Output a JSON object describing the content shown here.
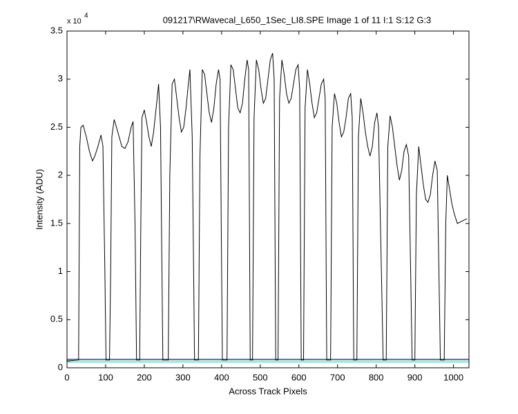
{
  "chart_data": {
    "type": "line",
    "title": "091217\\RWavecal_L650_1Sec_LI8.SPE  Image 1 of 11  I:1  S:12  G:3",
    "xlabel": "Across Track Pixels",
    "ylabel": "Intensity (ADU)",
    "y_exponent_base": "x 10",
    "y_exponent": "4",
    "xlim": [
      0,
      1040
    ],
    "ylim": [
      0,
      3.5
    ],
    "xticks": [
      0,
      100,
      200,
      300,
      400,
      500,
      600,
      700,
      800,
      900,
      1000
    ],
    "yticks": [
      0,
      0.5,
      1,
      1.5,
      2,
      2.5,
      3,
      3.5
    ],
    "grid": false,
    "series": [
      {
        "color": "#000000",
        "x": [
          0,
          30,
          33,
          36,
          42,
          50,
          58,
          66,
          72,
          80,
          88,
          93,
          98,
          101,
          110,
          113,
          116,
          122,
          128,
          135,
          142,
          150,
          158,
          166,
          171,
          176,
          180,
          188,
          191,
          194,
          200,
          206,
          212,
          218,
          224,
          232,
          237,
          242,
          248,
          262,
          266,
          272,
          278,
          284,
          290,
          296,
          302,
          308,
          314,
          318,
          324,
          330,
          340,
          344,
          350,
          356,
          362,
          368,
          374,
          380,
          386,
          392,
          396,
          402,
          414,
          418,
          424,
          430,
          436,
          442,
          448,
          454,
          460,
          466,
          470,
          474,
          480,
          484,
          490,
          496,
          502,
          508,
          514,
          520,
          526,
          532,
          536,
          540,
          546,
          550,
          556,
          562,
          568,
          574,
          580,
          586,
          592,
          598,
          602,
          606,
          612,
          616,
          622,
          628,
          634,
          640,
          646,
          652,
          658,
          664,
          668,
          672,
          682,
          686,
          692,
          698,
          704,
          710,
          716,
          722,
          728,
          734,
          738,
          742,
          750,
          754,
          760,
          766,
          772,
          778,
          784,
          790,
          796,
          802,
          806,
          818,
          826,
          830,
          836,
          842,
          848,
          854,
          860,
          866,
          872,
          878,
          884,
          893,
          900,
          904,
          910,
          916,
          922,
          928,
          934,
          940,
          946,
          952,
          958,
          966,
          976,
          980,
          984,
          990,
          996,
          1002,
          1010,
          1020,
          1035
        ],
        "values": [
          0.07,
          0.08,
          2.3,
          2.5,
          2.52,
          2.4,
          2.25,
          2.15,
          2.2,
          2.3,
          2.42,
          2.3,
          1.0,
          0.08,
          0.08,
          1.0,
          2.4,
          2.58,
          2.5,
          2.4,
          2.3,
          2.28,
          2.35,
          2.5,
          2.56,
          1.5,
          0.08,
          0.08,
          1.5,
          2.6,
          2.68,
          2.55,
          2.4,
          2.3,
          2.45,
          2.75,
          2.95,
          2.5,
          0.08,
          0.08,
          2.0,
          2.95,
          3.0,
          2.8,
          2.6,
          2.45,
          2.5,
          2.7,
          2.95,
          3.1,
          2.4,
          0.08,
          0.08,
          2.2,
          3.1,
          3.05,
          2.85,
          2.65,
          2.55,
          2.7,
          2.95,
          3.1,
          3.0,
          0.08,
          0.08,
          2.5,
          3.15,
          3.1,
          2.9,
          2.7,
          2.65,
          2.75,
          3.0,
          3.2,
          3.1,
          0.08,
          0.08,
          2.6,
          3.2,
          3.1,
          2.9,
          2.75,
          2.8,
          3.0,
          3.2,
          3.27,
          3.0,
          0.08,
          0.08,
          2.8,
          3.2,
          3.05,
          2.85,
          2.75,
          2.8,
          2.95,
          3.1,
          3.15,
          2.9,
          0.08,
          0.08,
          2.7,
          3.1,
          2.95,
          2.75,
          2.6,
          2.65,
          2.8,
          2.95,
          3.0,
          2.8,
          0.08,
          0.08,
          2.5,
          2.85,
          2.75,
          2.55,
          2.4,
          2.45,
          2.6,
          2.8,
          2.85,
          2.6,
          0.08,
          0.08,
          2.4,
          2.8,
          2.65,
          2.45,
          2.3,
          2.2,
          2.3,
          2.55,
          2.65,
          2.5,
          0.08,
          0.08,
          2.3,
          2.62,
          2.5,
          2.3,
          2.1,
          1.95,
          2.05,
          2.25,
          2.32,
          2.2,
          0.08,
          0.08,
          1.8,
          2.3,
          2.1,
          1.9,
          1.75,
          1.72,
          1.8,
          2.0,
          2.15,
          2.05,
          0.08,
          0.08,
          1.5,
          2.0,
          1.85,
          1.7,
          1.6,
          1.5,
          1.52,
          1.55
        ]
      },
      {
        "color": "#2a3fb0",
        "x": [
          0,
          1040
        ],
        "values": [
          0.09,
          0.09
        ]
      },
      {
        "color": "#3aa06a",
        "x": [
          0,
          1040
        ],
        "values": [
          0.08,
          0.08
        ]
      },
      {
        "color": "#00c8d8",
        "x": [
          0,
          1040
        ],
        "values": [
          0.06,
          0.06
        ]
      }
    ]
  }
}
